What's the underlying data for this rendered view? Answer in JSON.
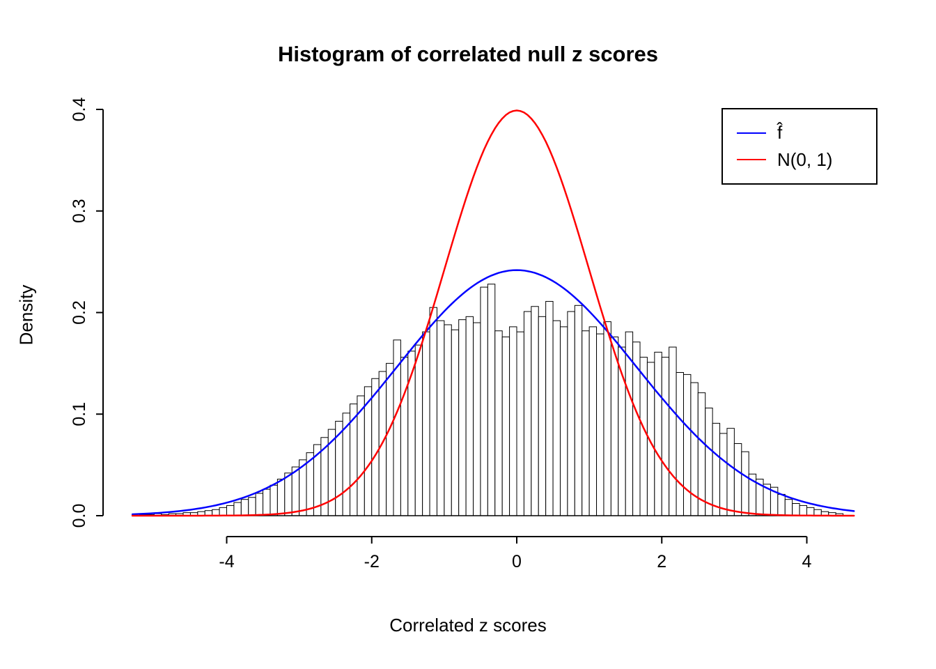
{
  "chart_data": {
    "type": "histogram",
    "title": "Histogram of correlated null z scores",
    "xlabel": "Correlated z scores",
    "ylabel": "Density",
    "xlim": [
      -5.2,
      4.6
    ],
    "ylim": [
      0,
      0.4
    ],
    "grid": false,
    "legend_position": "top-right",
    "xticks": {
      "values": [
        -4,
        -2,
        0,
        2,
        4
      ],
      "labels": [
        "-4",
        "-2",
        "0",
        "2",
        "4"
      ]
    },
    "yticks": {
      "values": [
        0,
        0.1,
        0.2,
        0.3,
        0.4
      ],
      "labels": [
        "0.0",
        "0.1",
        "0.2",
        "0.3",
        "0.4"
      ]
    },
    "histogram": {
      "bin_start": -5.2,
      "bin_width": 0.1,
      "bar_fill": "#ffffff",
      "bar_stroke": "#000000",
      "densities": [
        0.001,
        0.001,
        0.002,
        0.001,
        0.002,
        0.002,
        0.003,
        0.003,
        0.004,
        0.005,
        0.006,
        0.008,
        0.01,
        0.013,
        0.016,
        0.018,
        0.022,
        0.026,
        0.03,
        0.036,
        0.042,
        0.048,
        0.055,
        0.062,
        0.07,
        0.077,
        0.085,
        0.093,
        0.101,
        0.11,
        0.118,
        0.127,
        0.135,
        0.142,
        0.15,
        0.173,
        0.156,
        0.162,
        0.168,
        0.181,
        0.205,
        0.192,
        0.188,
        0.183,
        0.193,
        0.196,
        0.19,
        0.225,
        0.228,
        0.182,
        0.176,
        0.186,
        0.181,
        0.201,
        0.206,
        0.196,
        0.211,
        0.192,
        0.186,
        0.201,
        0.207,
        0.182,
        0.186,
        0.179,
        0.191,
        0.176,
        0.166,
        0.181,
        0.171,
        0.156,
        0.151,
        0.161,
        0.156,
        0.166,
        0.141,
        0.139,
        0.131,
        0.121,
        0.106,
        0.091,
        0.081,
        0.086,
        0.071,
        0.063,
        0.041,
        0.036,
        0.031,
        0.028,
        0.021,
        0.016,
        0.012,
        0.01,
        0.008,
        0.006,
        0.004,
        0.003,
        0.002
      ]
    },
    "curves": [
      {
        "id": "fhat",
        "name": "f̂",
        "color": "#0000ff",
        "distribution": "normal",
        "mean": 0,
        "sd": 1.65,
        "peak_density": 0.242
      },
      {
        "id": "n01",
        "name": "N(0, 1)",
        "color": "#ff0000",
        "distribution": "normal",
        "mean": 0,
        "sd": 1.0,
        "peak_density": 0.399
      }
    ]
  }
}
